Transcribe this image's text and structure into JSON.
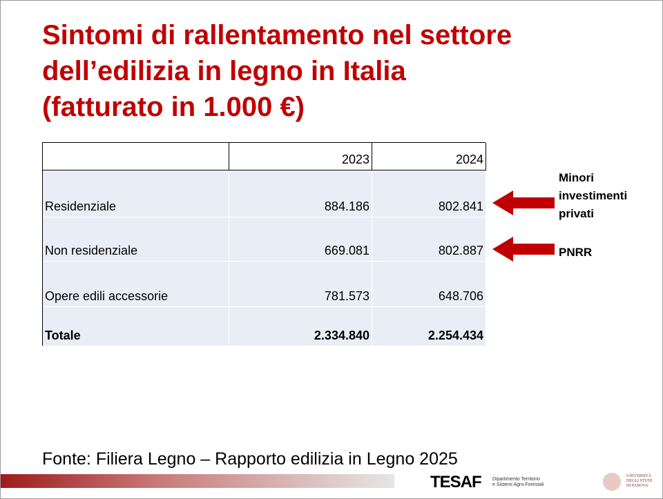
{
  "title": {
    "lines": [
      "Sintomi di rallentamento nel settore",
      "dell’edilizia in legno in Italia",
      "(fatturato in 1.000 €)"
    ]
  },
  "table": {
    "columns": [
      "2023",
      "2024"
    ],
    "rows": [
      [
        "Residenziale",
        "884.186",
        "802.841"
      ],
      [
        "Non residenziale",
        "669.081",
        "802.887"
      ],
      [
        "Opere edili accessorie",
        "781.573",
        "648.706"
      ],
      [
        "Totale",
        "2.334.840",
        "2.254.434"
      ]
    ]
  },
  "annotations": [
    {
      "lines": [
        "Minori",
        "investimenti",
        "privati"
      ]
    },
    {
      "lines": [
        "PNRR"
      ]
    }
  ],
  "source": "Fonte: Filiera Legno – Rapporto edilizia in Legno 2025",
  "footer": {
    "logo": "TESAF",
    "department": [
      "Dipartimento Territorio",
      "e Sistemi Agro-Forestali"
    ],
    "university": [
      "Università",
      "degli Studi",
      "di Padova"
    ]
  }
}
